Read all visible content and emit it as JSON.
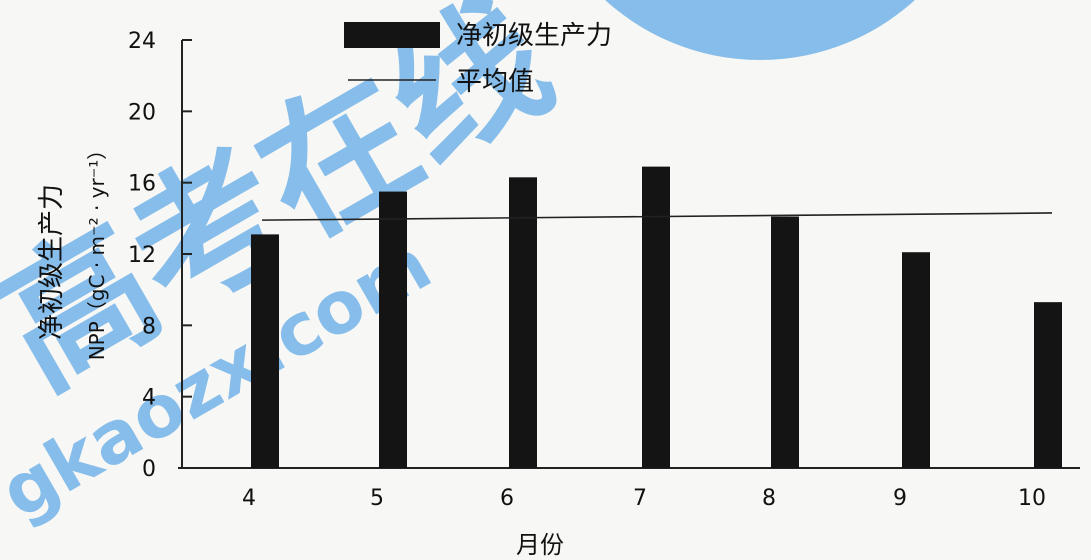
{
  "chart_data": {
    "type": "bar",
    "categories": [
      "4",
      "5",
      "6",
      "7",
      "8",
      "9",
      "10"
    ],
    "series": [
      {
        "name": "净初级生产力",
        "values": [
          13.1,
          15.5,
          16.3,
          16.9,
          14.1,
          12.1,
          9.3
        ]
      }
    ],
    "reference_line": {
      "name": "平均值",
      "start": 13.9,
      "end": 14.3
    },
    "xlabel": "月份",
    "ylabel_line1": "净初级生产力",
    "ylabel_line2": "NPP（gC · m⁻² · yr⁻¹）",
    "ylim": [
      0,
      24
    ],
    "yticks": [
      0,
      4,
      8,
      12,
      16,
      20,
      24
    ],
    "legend_position": "top",
    "colors": {
      "bar": "#141414",
      "line": "#222222",
      "watermark": "#2b8fe0"
    }
  },
  "watermark": {
    "cn": "高考在线",
    "en": "gkaozx.com"
  }
}
